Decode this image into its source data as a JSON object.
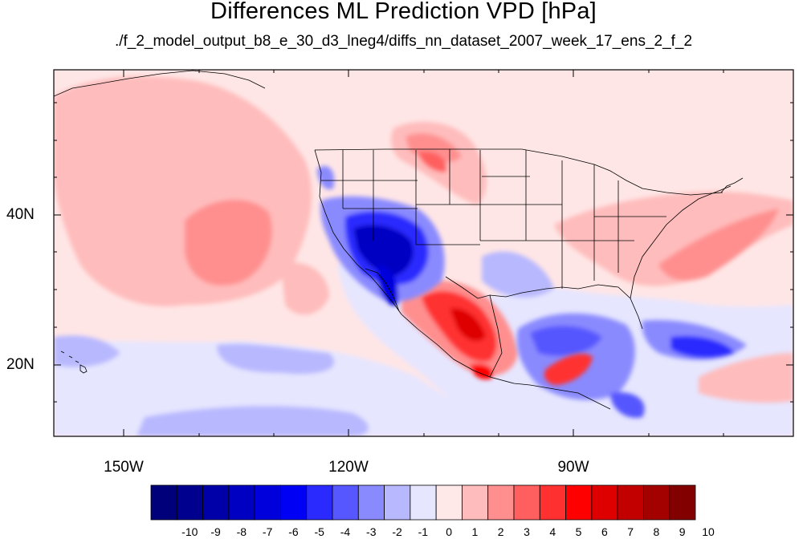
{
  "title": "Differences ML Prediction VPD [hPa]",
  "subtitle": "./f_2_model_output_b8_e_30_d3_lneg4/diffs_nn_dataset_2007_week_17_ens_2_f_2",
  "lat_labels": [
    "40N",
    "20N"
  ],
  "lon_labels": [
    "150W",
    "120W",
    "90W"
  ],
  "colorbar": {
    "labels": [
      "-10",
      "-9",
      "-8",
      "-7",
      "-6",
      "-5",
      "-4",
      "-3",
      "-2",
      "-1",
      "0",
      "1",
      "2",
      "3",
      "4",
      "5",
      "6",
      "7",
      "8",
      "9",
      "10"
    ],
    "colors": [
      "#00007a",
      "#00008f",
      "#0000a8",
      "#0000c2",
      "#0000dc",
      "#0000f5",
      "#2a2aff",
      "#5757ff",
      "#8a8aff",
      "#b8b8ff",
      "#e6e6ff",
      "#ffe8e8",
      "#ffbcbc",
      "#ff8f8f",
      "#ff5f5f",
      "#ff3030",
      "#ff0000",
      "#de0000",
      "#c20000",
      "#a30000",
      "#820000"
    ]
  },
  "colors": {
    "background_anomaly": "#ffe6e6",
    "positive_light": "#ffb0b0",
    "positive_mid": "#ff7070",
    "positive_strong": "#e00000",
    "negative_light": "#dcdcff",
    "negative_mid": "#7878ff",
    "negative_strong": "#0000cc"
  }
}
